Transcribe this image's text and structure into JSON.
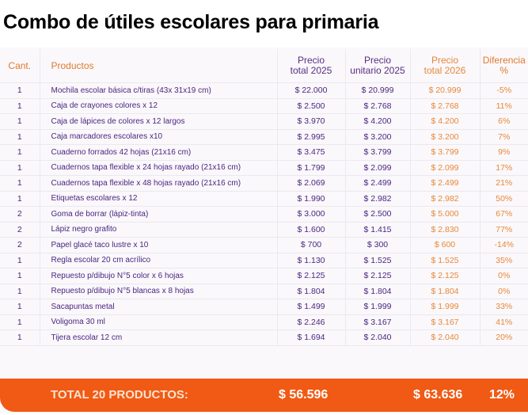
{
  "title": "Combo de útiles escolares para primaria",
  "headers": {
    "cant": "Cant.",
    "productos": "Productos",
    "total2025": [
      "Precio",
      "total 2025"
    ],
    "unit2025": [
      "Precio",
      "unitario 2025"
    ],
    "total2026": [
      "Precio",
      "total 2026"
    ],
    "diff": [
      "Diferencia",
      "%"
    ]
  },
  "rows": [
    {
      "cant": "1",
      "producto": "Mochila escolar básica c/tiras (43x 31x19 cm)",
      "total2025": "$ 22.000",
      "unit2025": "$ 20.999",
      "total2026": "$ 20.999",
      "diff": "-5%"
    },
    {
      "cant": "1",
      "producto": "Caja de crayones colores x 12",
      "total2025": "$ 2.500",
      "unit2025": "$ 2.768",
      "total2026": "$ 2.768",
      "diff": "11%"
    },
    {
      "cant": "1",
      "producto": "Caja de lápices de colores x 12 largos",
      "total2025": "$ 3.970",
      "unit2025": "$ 4.200",
      "total2026": "$ 4.200",
      "diff": "6%"
    },
    {
      "cant": "1",
      "producto": "Caja marcadores escolares x10",
      "total2025": "$ 2.995",
      "unit2025": "$ 3.200",
      "total2026": "$ 3.200",
      "diff": "7%"
    },
    {
      "cant": "1",
      "producto": "Cuaderno forrados 42 hojas (21x16 cm)",
      "total2025": "$ 3.475",
      "unit2025": "$ 3.799",
      "total2026": "$ 3.799",
      "diff": "9%"
    },
    {
      "cant": "1",
      "producto": "Cuadernos tapa flexible x 24 hojas rayado (21x16 cm)",
      "total2025": "$ 1.799",
      "unit2025": "$ 2.099",
      "total2026": "$ 2.099",
      "diff": "17%"
    },
    {
      "cant": "1",
      "producto": "Cuadernos tapa flexible x 48 hojas rayado (21x16 cm)",
      "total2025": "$ 2.069",
      "unit2025": "$ 2.499",
      "total2026": "$ 2.499",
      "diff": "21%"
    },
    {
      "cant": "1",
      "producto": "Etiquetas escolares x 12",
      "total2025": "$ 1.990",
      "unit2025": "$ 2.982",
      "total2026": "$ 2.982",
      "diff": "50%"
    },
    {
      "cant": "2",
      "producto": "Goma de borrar (lápiz-tinta)",
      "total2025": "$ 3.000",
      "unit2025": "$ 2.500",
      "total2026": "$ 5.000",
      "diff": "67%"
    },
    {
      "cant": "2",
      "producto": "Lápiz negro grafito",
      "total2025": "$ 1.600",
      "unit2025": "$ 1.415",
      "total2026": "$ 2.830",
      "diff": "77%"
    },
    {
      "cant": "2",
      "producto": "Papel glacé taco lustre x 10",
      "total2025": "$ 700",
      "unit2025": "$ 300",
      "total2026": "$ 600",
      "diff": "-14%"
    },
    {
      "cant": "1",
      "producto": "Regla escolar 20 cm acrílico",
      "total2025": "$ 1.130",
      "unit2025": "$ 1.525",
      "total2026": "$ 1.525",
      "diff": "35%"
    },
    {
      "cant": "1",
      "producto": "Repuesto p/dibujo N°5 color x 6 hojas",
      "total2025": "$ 2.125",
      "unit2025": "$ 2.125",
      "total2026": "$ 2.125",
      "diff": "0%"
    },
    {
      "cant": "1",
      "producto": "Repuesto p/dibujo N°5 blancas x 8 hojas",
      "total2025": "$ 1.804",
      "unit2025": "$ 1.804",
      "total2026": "$ 1.804",
      "diff": "0%"
    },
    {
      "cant": "1",
      "producto": "Sacapuntas metal",
      "total2025": "$ 1.499",
      "unit2025": "$ 1.999",
      "total2026": "$ 1.999",
      "diff": "33%"
    },
    {
      "cant": "1",
      "producto": "Voligoma 30 ml",
      "total2025": "$ 2.246",
      "unit2025": "$ 3.167",
      "total2026": "$ 3.167",
      "diff": "41%"
    },
    {
      "cant": "1",
      "producto": "Tijera escolar 12 cm",
      "total2025": "$ 1.694",
      "unit2025": "$ 2.040",
      "total2026": "$ 2.040",
      "diff": "20%"
    }
  ],
  "total": {
    "label": "TOTAL 20 PRODUCTOS:",
    "total2025": "$ 56.596",
    "total2026": "$ 63.636",
    "diff": "12%"
  }
}
